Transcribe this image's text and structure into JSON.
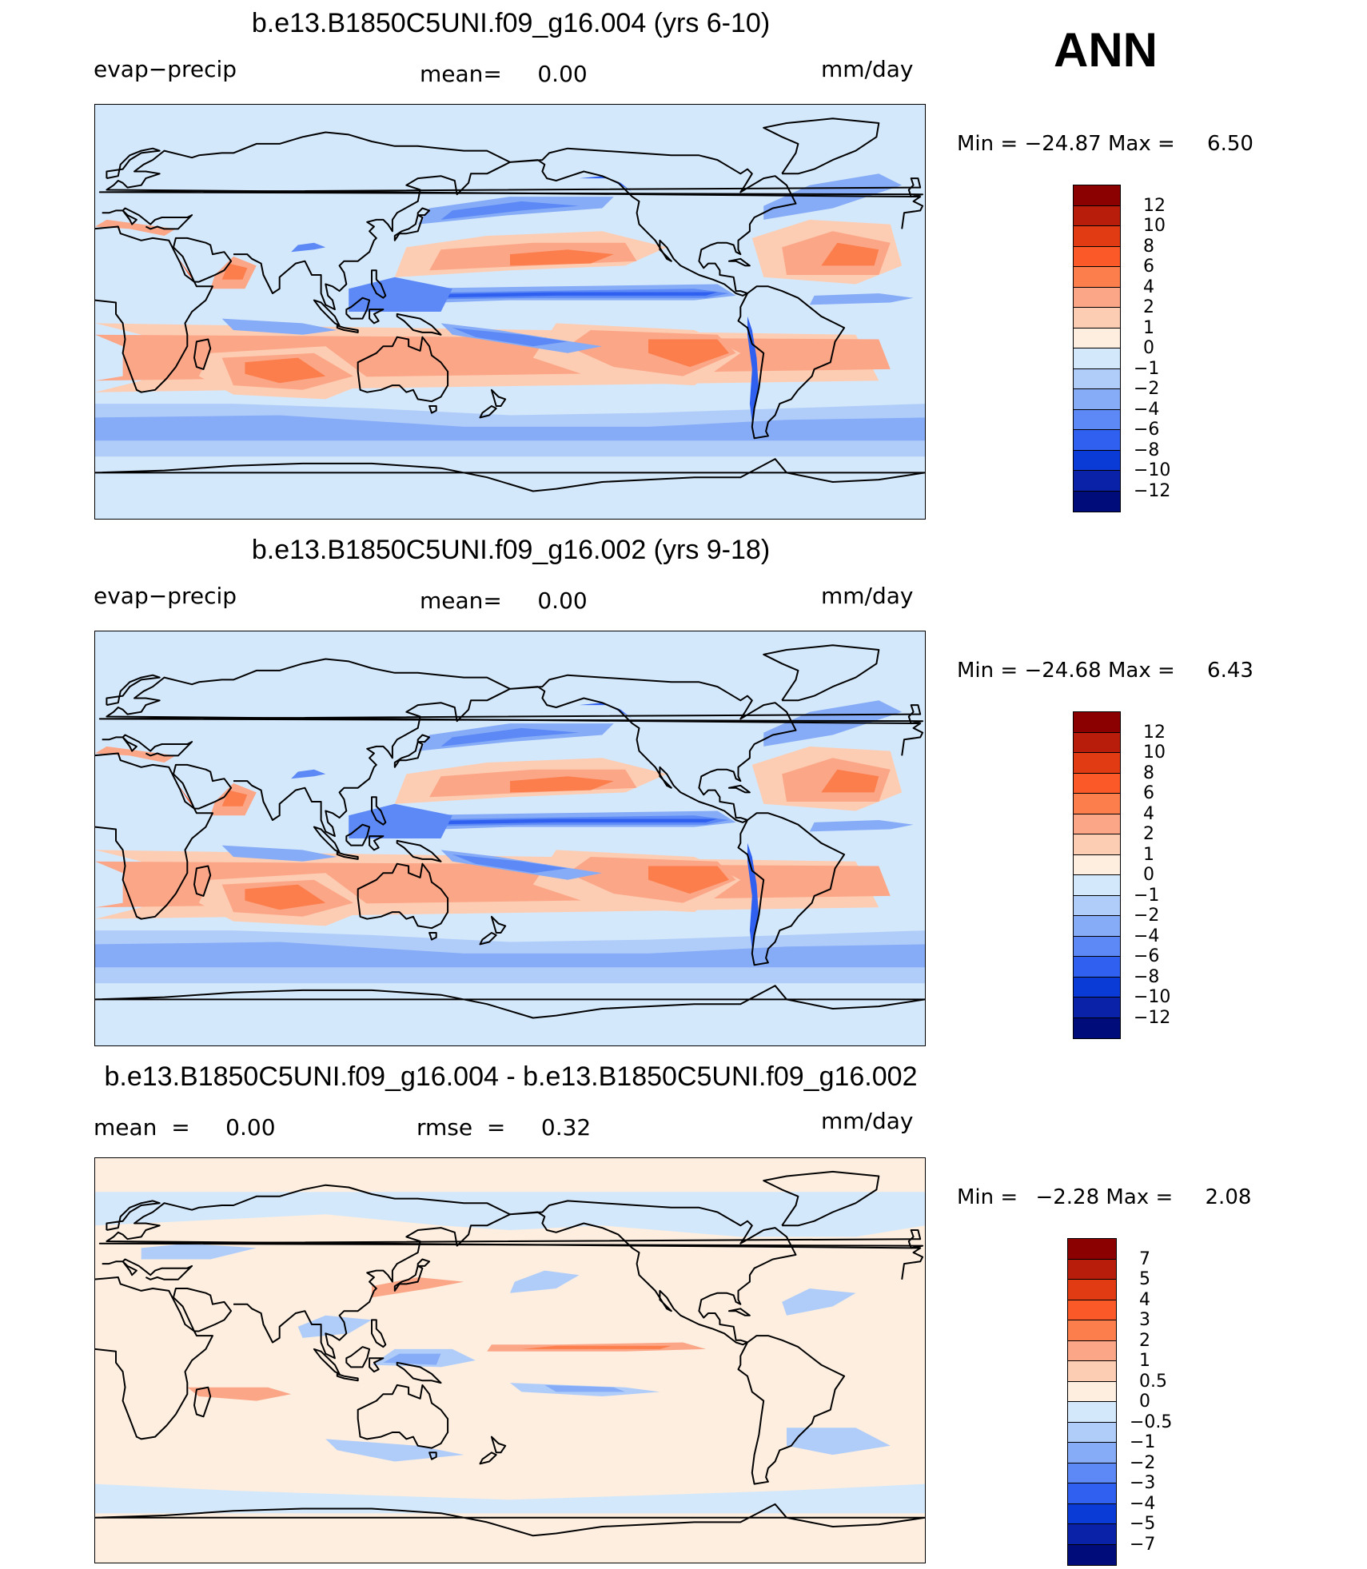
{
  "season": "ANN",
  "colors": {
    "land": "#d4e8fb",
    "coast": "#000000"
  },
  "panels": [
    {
      "title": "b.e13.B1850C5UNI.f09_g16.004 (yrs 6-10)",
      "left_label": "evap−precip",
      "center_label": "mean=     0.00",
      "right_label": "mm/day",
      "min_label": "Min",
      "min_value": "−24.87",
      "max_label": "Max",
      "max_value": "6.50",
      "background_color": "#d4e8fb",
      "levels": [
        "12",
        "10",
        "8",
        "6",
        "4",
        "2",
        "1",
        "0",
        "−1",
        "−2",
        "−4",
        "−6",
        "−8",
        "−10",
        "−12"
      ],
      "colors": [
        "#8b0000",
        "#b81c0a",
        "#e13b14",
        "#fb5a28",
        "#fb7e4c",
        "#fca688",
        "#fdcdb3",
        "#fdeedf",
        "#d4e8fb",
        "#b0cdfa",
        "#86acf7",
        "#5c89f5",
        "#2f60ef",
        "#0b3bd6",
        "#0a22a8",
        "#000c7a"
      ],
      "field_style": "mean"
    },
    {
      "title": "b.e13.B1850C5UNI.f09_g16.002 (yrs 9-18)",
      "left_label": "evap−precip",
      "center_label": "mean=     0.00",
      "right_label": "mm/day",
      "min_label": "Min",
      "min_value": "−24.68",
      "max_label": "Max",
      "max_value": "6.43",
      "background_color": "#d4e8fb",
      "levels": [
        "12",
        "10",
        "8",
        "6",
        "4",
        "2",
        "1",
        "0",
        "−1",
        "−2",
        "−4",
        "−6",
        "−8",
        "−10",
        "−12"
      ],
      "colors": [
        "#8b0000",
        "#b81c0a",
        "#e13b14",
        "#fb5a28",
        "#fb7e4c",
        "#fca688",
        "#fdcdb3",
        "#fdeedf",
        "#d4e8fb",
        "#b0cdfa",
        "#86acf7",
        "#5c89f5",
        "#2f60ef",
        "#0b3bd6",
        "#0a22a8",
        "#000c7a"
      ],
      "field_style": "mean"
    },
    {
      "title": "b.e13.B1850C5UNI.f09_g16.004 - b.e13.B1850C5UNI.f09_g16.002",
      "left_label": "mean  =     0.00",
      "center_label": "rmse  =     0.32",
      "right_label": "mm/day",
      "min_label": "Min",
      "min_value": "−2.28",
      "max_label": "Max",
      "max_value": "2.08",
      "background_color": "#fdeedf",
      "levels": [
        "7",
        "5",
        "4",
        "3",
        "2",
        "1",
        "0.5",
        "0",
        "−0.5",
        "−1",
        "−2",
        "−3",
        "−4",
        "−5",
        "−7"
      ],
      "colors": [
        "#8b0000",
        "#b81c0a",
        "#e13b14",
        "#fb5a28",
        "#fb7e4c",
        "#fca688",
        "#fdcdb3",
        "#fdeedf",
        "#d4e8fb",
        "#b0cdfa",
        "#86acf7",
        "#5c89f5",
        "#2f60ef",
        "#0b3bd6",
        "#0a22a8",
        "#000c7a"
      ],
      "field_style": "diff"
    }
  ]
}
